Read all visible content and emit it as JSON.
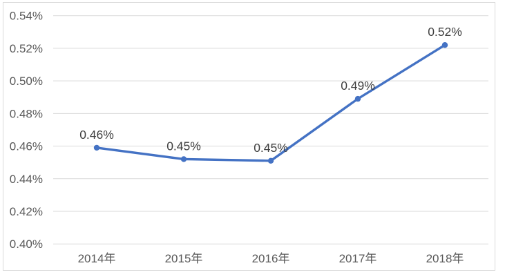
{
  "chart_data": {
    "type": "line",
    "title": "",
    "xlabel": "",
    "ylabel": "",
    "unit": "%",
    "categories": [
      "2014年",
      "2015年",
      "2016年",
      "2017年",
      "2018年"
    ],
    "series": [
      {
        "name": "",
        "values": [
          0.459,
          0.452,
          0.451,
          0.489,
          0.522
        ],
        "data_labels": [
          "0.46%",
          "0.45%",
          "0.45%",
          "0.49%",
          "0.52%"
        ]
      }
    ],
    "ylim": [
      0.4,
      0.54
    ],
    "y_tick_step": 0.02,
    "y_tick_labels": [
      "0.54%",
      "0.52%",
      "0.50%",
      "0.48%",
      "0.46%",
      "0.44%",
      "0.42%",
      "0.40%"
    ],
    "grid": true,
    "legend_position": "none",
    "colors": {
      "series_line": "#4472C4",
      "marker": "#4472C4",
      "gridline": "#D9D9D9",
      "axis_label_text": "#595959",
      "data_label_text": "#404040",
      "chart_border": "#D9D9D9",
      "background": "#FFFFFF"
    }
  }
}
